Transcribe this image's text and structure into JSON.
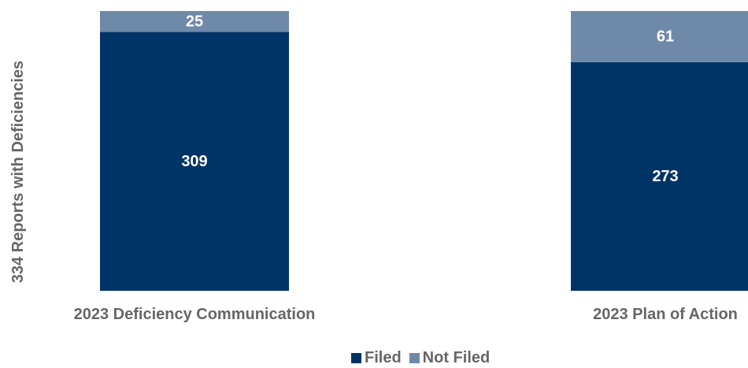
{
  "chart_data": {
    "type": "bar",
    "stacked": true,
    "categories": [
      "2023 Deficiency Communication",
      "2023 Plan of Action"
    ],
    "series": [
      {
        "name": "Filed",
        "values": [
          309,
          273
        ],
        "color": "#003366"
      },
      {
        "name": "Not Filed",
        "values": [
          25,
          61
        ],
        "color": "#6f89a8"
      }
    ],
    "ylabel": "334 Reports with Deficiencies",
    "ylim": [
      0,
      334
    ],
    "grid": false,
    "legend_position": "bottom"
  }
}
